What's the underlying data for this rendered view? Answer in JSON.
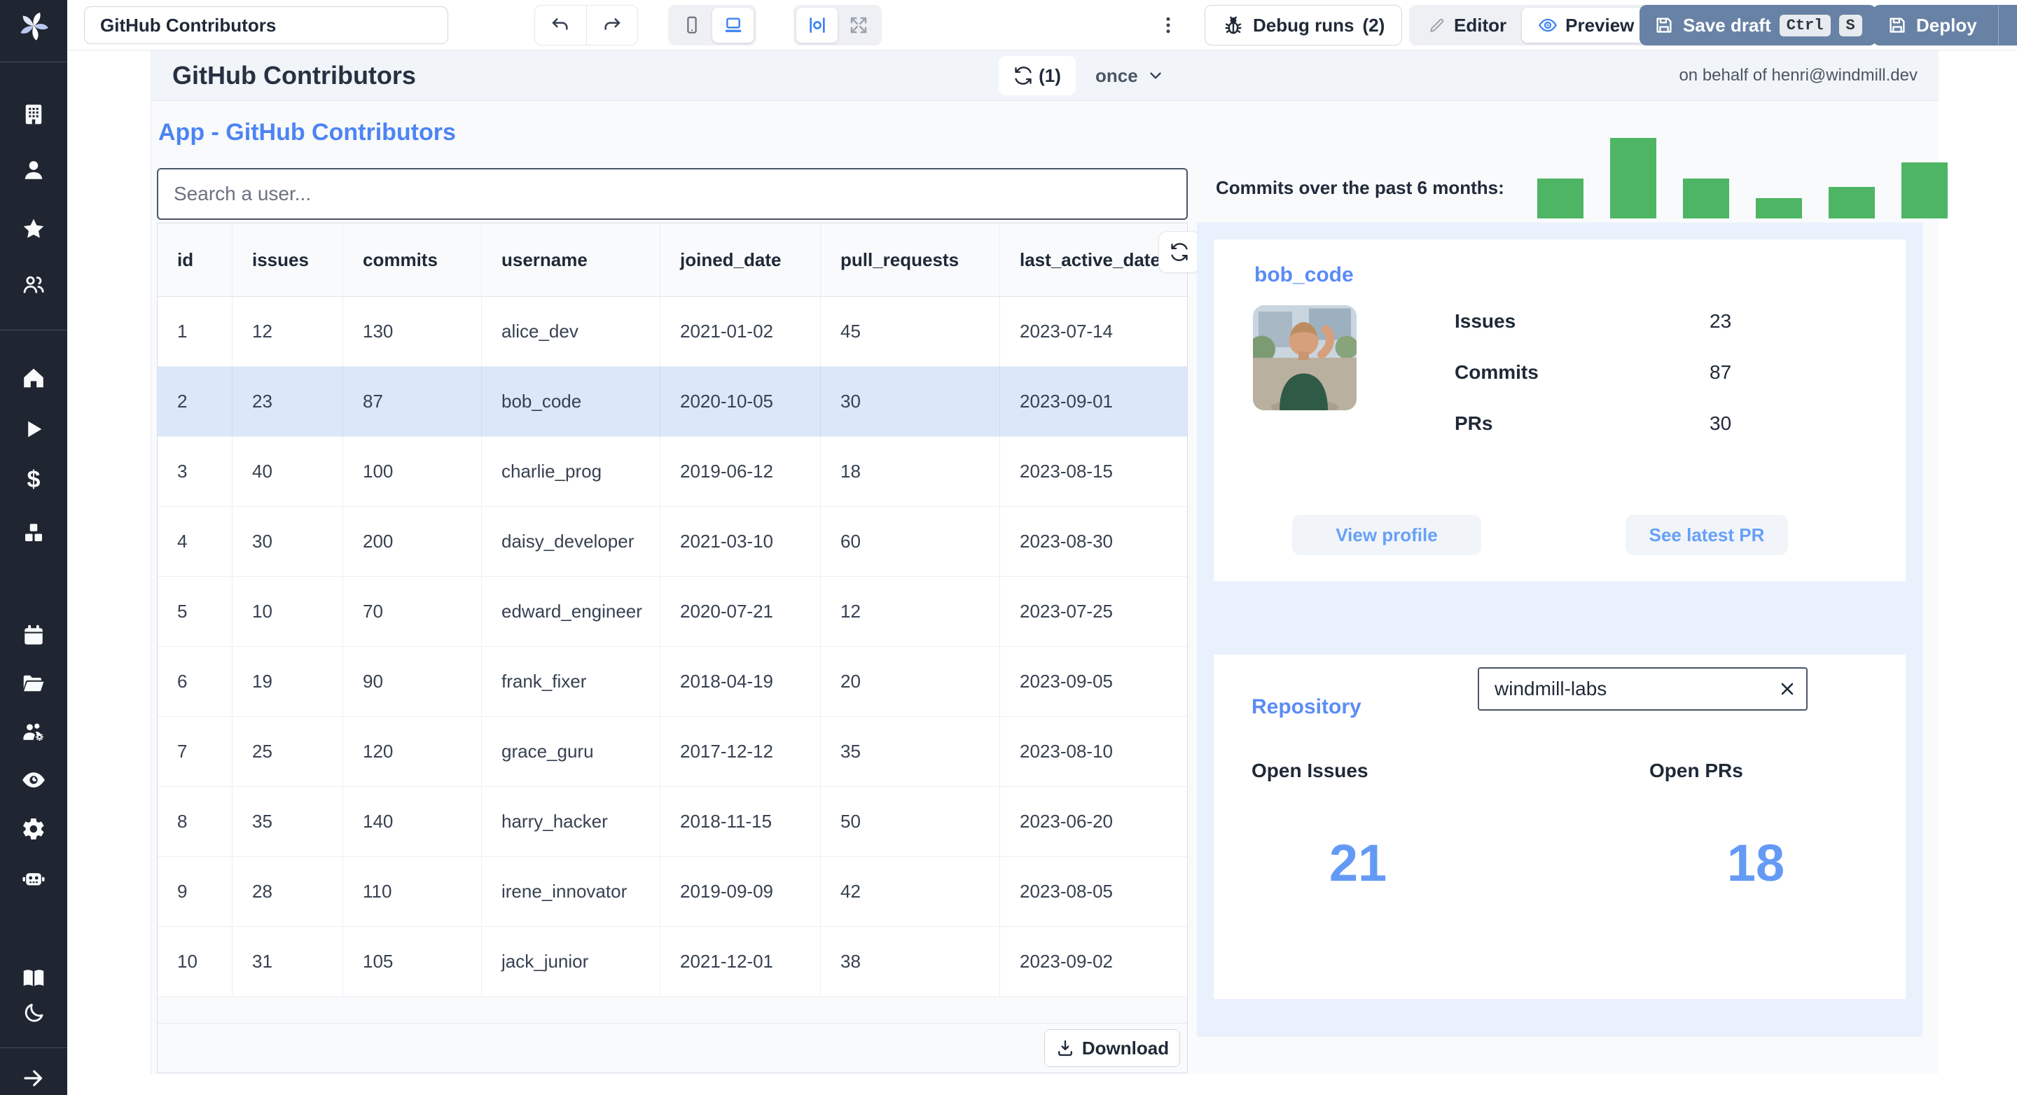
{
  "toolbar": {
    "app_name_input": "GitHub Contributors",
    "debug_runs_label": "Debug runs",
    "debug_runs_count": "(2)",
    "editor_label": "Editor",
    "preview_label": "Preview",
    "save_draft_label": "Save draft",
    "kbd": {
      "ctrl": "Ctrl",
      "s": "S"
    },
    "deploy_label": "Deploy"
  },
  "app_header": {
    "title": "GitHub Contributors",
    "refresh_count": "(1)",
    "schedule": "once",
    "on_behalf_of": "on behalf of henri@windmill.dev"
  },
  "main": {
    "app_title": "App - GitHub Contributors",
    "search_placeholder": "Search a user...",
    "download_label": "Download",
    "commits_label": "Commits over the past 6 months:"
  },
  "table": {
    "columns": [
      "id",
      "issues",
      "commits",
      "username",
      "joined_date",
      "pull_requests",
      "last_active_date"
    ],
    "rows": [
      [
        "1",
        "12",
        "130",
        "alice_dev",
        "2021-01-02",
        "45",
        "2023-07-14"
      ],
      [
        "2",
        "23",
        "87",
        "bob_code",
        "2020-10-05",
        "30",
        "2023-09-01"
      ],
      [
        "3",
        "40",
        "100",
        "charlie_prog",
        "2019-06-12",
        "18",
        "2023-08-15"
      ],
      [
        "4",
        "30",
        "200",
        "daisy_developer",
        "2021-03-10",
        "60",
        "2023-08-30"
      ],
      [
        "5",
        "10",
        "70",
        "edward_engineer",
        "2020-07-21",
        "12",
        "2023-07-25"
      ],
      [
        "6",
        "19",
        "90",
        "frank_fixer",
        "2018-04-19",
        "20",
        "2023-09-05"
      ],
      [
        "7",
        "25",
        "120",
        "grace_guru",
        "2017-12-12",
        "35",
        "2023-08-10"
      ],
      [
        "8",
        "35",
        "140",
        "harry_hacker",
        "2018-11-15",
        "50",
        "2023-06-20"
      ],
      [
        "9",
        "28",
        "110",
        "irene_innovator",
        "2019-09-09",
        "42",
        "2023-08-05"
      ],
      [
        "10",
        "31",
        "105",
        "jack_junior",
        "2021-12-01",
        "38",
        "2023-09-02"
      ]
    ],
    "selected_row_index": 1
  },
  "chart_data": {
    "type": "bar",
    "title": "Commits over the past 6 months:",
    "x_axis": "6 recent months (tick labels not shown)",
    "values": [
      57,
      115,
      57,
      29,
      45,
      80
    ],
    "ylim": [
      0,
      115
    ],
    "grid": false,
    "legend": false,
    "color": "#4db563"
  },
  "profile_card": {
    "username": "bob_code",
    "stats": [
      {
        "label": "Issues",
        "value": "23"
      },
      {
        "label": "Commits",
        "value": "87"
      },
      {
        "label": "PRs",
        "value": "30"
      }
    ],
    "view_profile_label": "View profile",
    "see_latest_pr_label": "See latest PR"
  },
  "repo_card": {
    "title": "Repository",
    "repo_input_value": "windmill-labs",
    "open_issues_label": "Open Issues",
    "open_prs_label": "Open PRs",
    "open_issues_value": "21",
    "open_prs_value": "18"
  },
  "colors": {
    "accent_blue": "#4d84f3",
    "stat_number_blue": "#649af5",
    "bar_green": "#4db563",
    "button_slate": "#6782a4",
    "selected_row": "#dbe8f9",
    "sidebar_bg": "#1f2531"
  },
  "icons": [
    "windmill-logo",
    "building",
    "user",
    "star",
    "users",
    "home",
    "play",
    "dollar",
    "cubes",
    "calendar",
    "folder-open",
    "users-gear",
    "eye",
    "gear",
    "robot",
    "book-open",
    "moon",
    "arrow-right",
    "undo",
    "redo",
    "smartphone",
    "laptop",
    "align-center",
    "expand",
    "kebab-menu",
    "bug",
    "pencil",
    "eye-preview",
    "save-floppy",
    "chevron-down",
    "refresh",
    "download",
    "clear-x"
  ]
}
